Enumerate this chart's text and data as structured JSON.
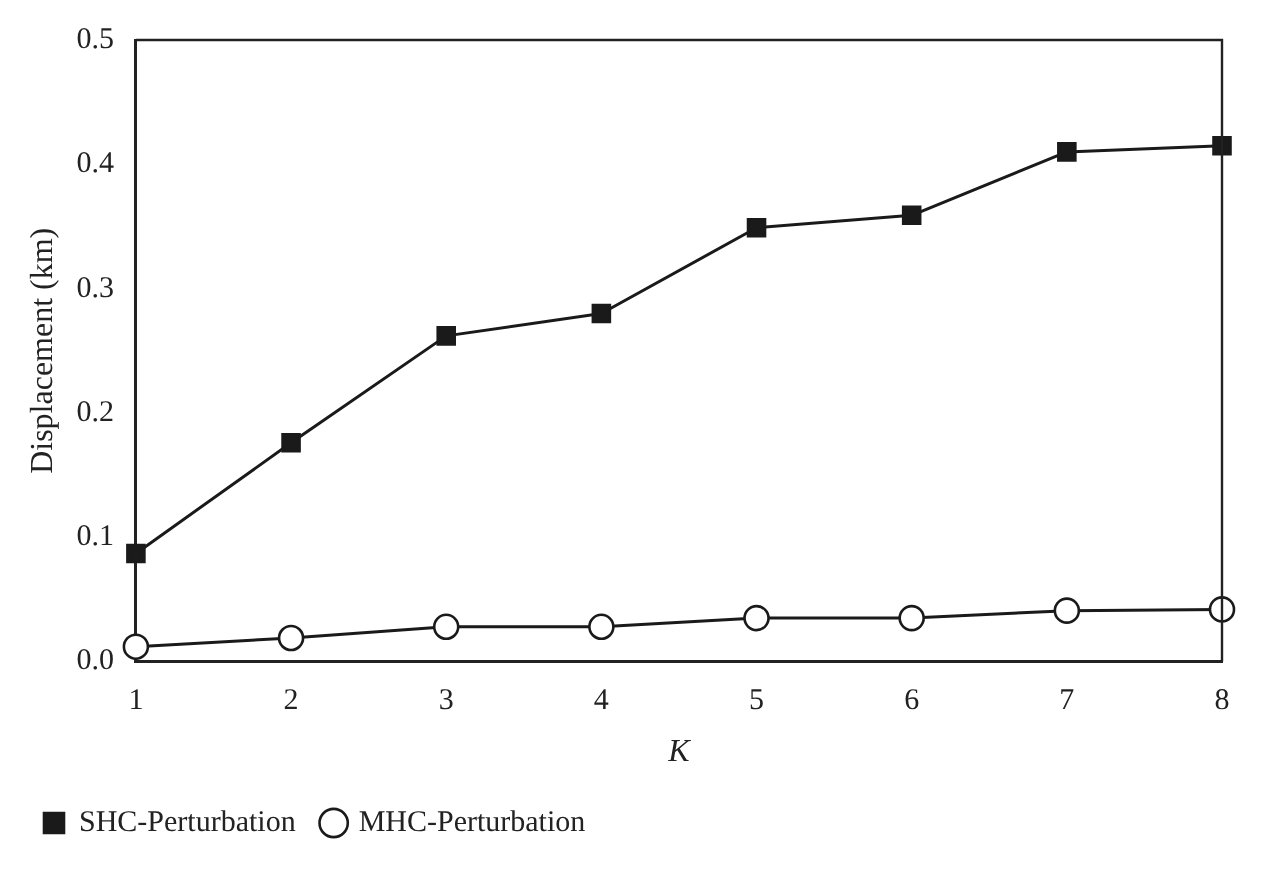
{
  "chart_data": {
    "type": "line",
    "xlabel": "K",
    "ylabel": "Displacement (km)",
    "x": [
      1,
      2,
      3,
      4,
      5,
      6,
      7,
      8
    ],
    "series": [
      {
        "name": "SHC-Perturbation",
        "color": "#1a1a1a",
        "marker": "square",
        "values": [
          0.087,
          0.176,
          0.262,
          0.28,
          0.349,
          0.359,
          0.41,
          0.415
        ]
      },
      {
        "name": "MHC-Perturbation",
        "color": "#1a1a1a",
        "marker": "circle",
        "values": [
          0.012,
          0.019,
          0.028,
          0.028,
          0.035,
          0.035,
          0.041,
          0.042
        ]
      }
    ],
    "xlim": [
      1,
      8
    ],
    "xticks": [
      1,
      2,
      3,
      4,
      5,
      6,
      7,
      8
    ],
    "ylim": [
      0,
      0.5
    ],
    "yticks": [
      {
        "value": 0,
        "label": "0.0"
      },
      0.1,
      0.2,
      0.3,
      0.4,
      0.5
    ],
    "grid": false,
    "legend": "bottom left",
    "line_style": "solid"
  }
}
